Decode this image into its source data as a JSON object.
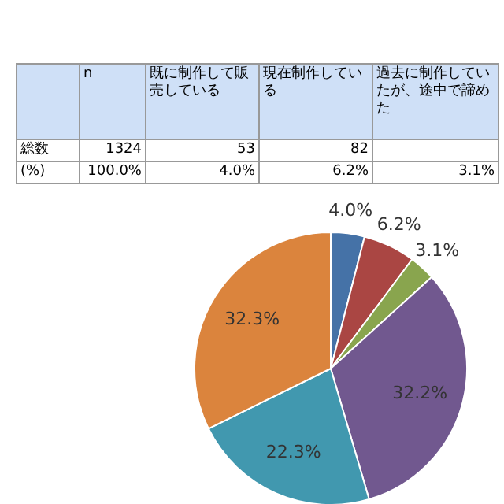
{
  "chart_data": {
    "type": "pie",
    "categories": [
      null,
      null,
      null,
      null,
      null,
      null
    ],
    "values": [
      4.0,
      6.2,
      3.1,
      32.2,
      22.3,
      32.3
    ],
    "colors": [
      "#4572a7",
      "#aa4643",
      "#89a54e",
      "#71588f",
      "#4198af",
      "#db843d"
    ],
    "value_labels": [
      "4.0%",
      "6.2%",
      "3.1%",
      "32.2%",
      "22.3%",
      "32.3%"
    ],
    "annotations": [
      "n",
      "既に制作して販売している",
      "現在制作している",
      "過去に制作していたが、途中で諦めた",
      "総数",
      "1324",
      "53",
      "82",
      "(%)",
      "100.0%",
      "4.0%",
      "6.2%",
      "3.1%"
    ]
  }
}
